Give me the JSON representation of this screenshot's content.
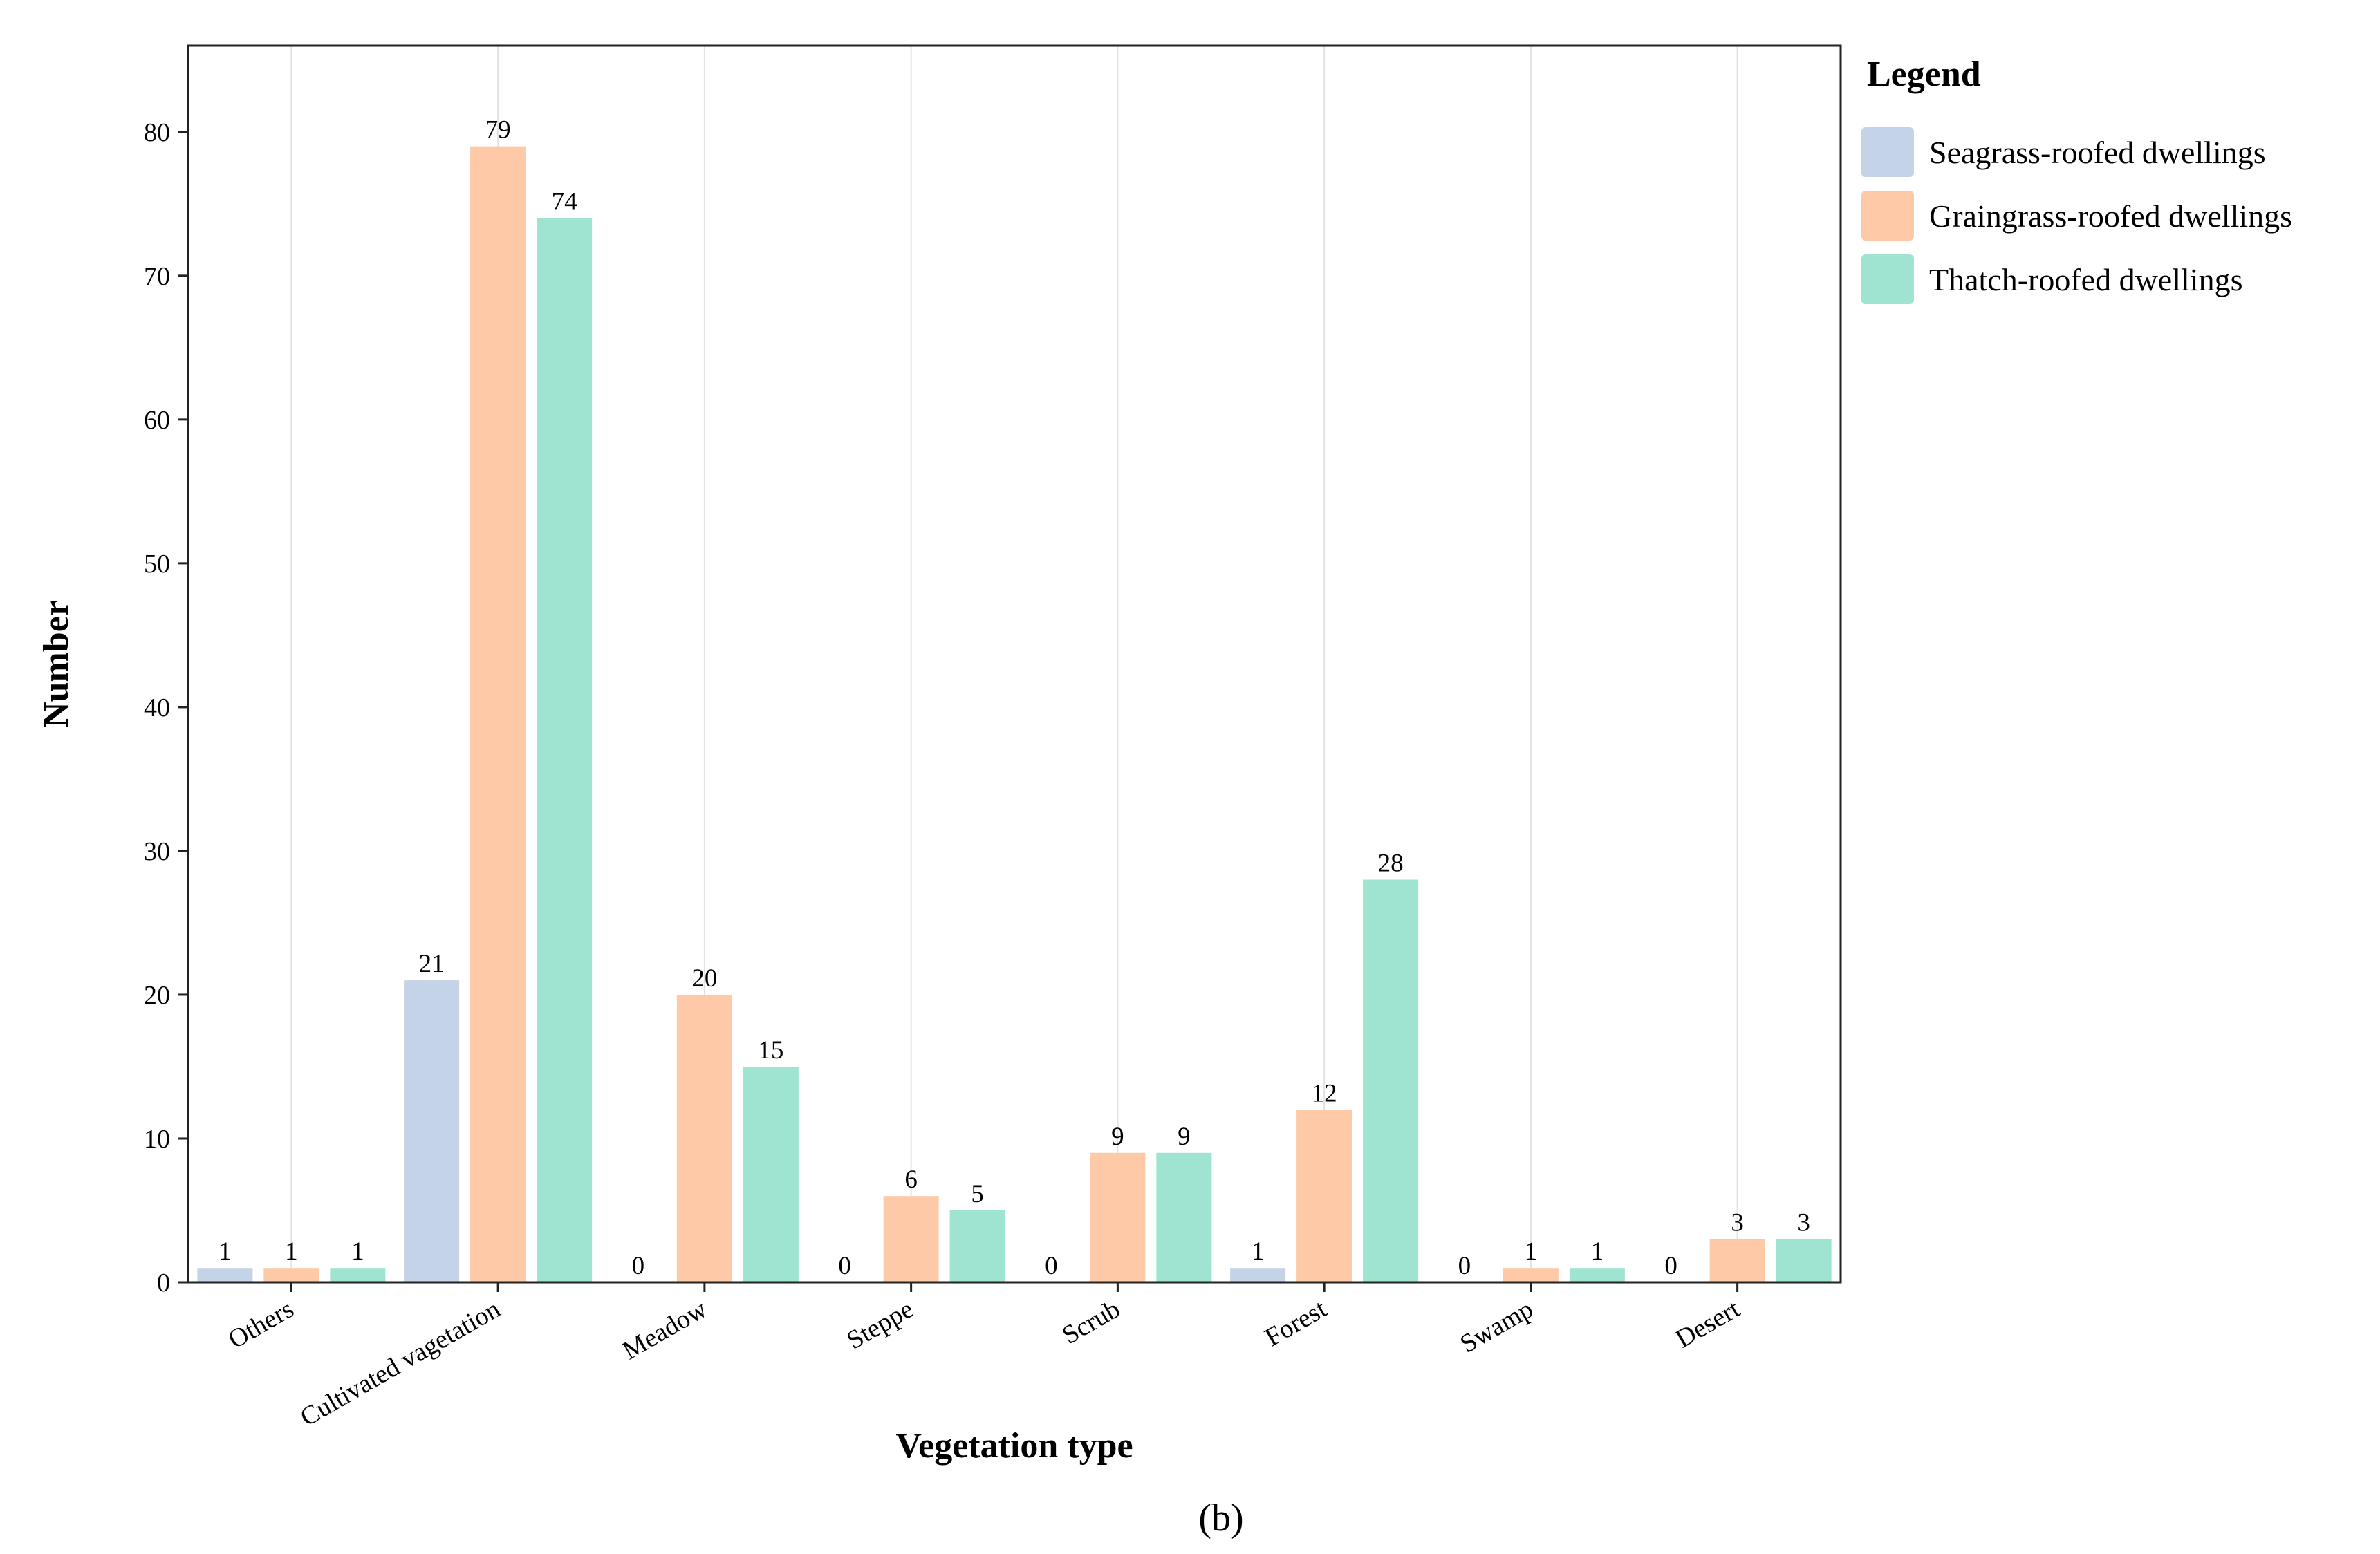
{
  "chart_data": {
    "type": "bar",
    "title": "",
    "xlabel": "Vegetation type",
    "ylabel": "Number",
    "ylim": [
      0,
      86
    ],
    "yticks": [
      0,
      10,
      20,
      30,
      40,
      50,
      60,
      70,
      80
    ],
    "grid": "vertical",
    "categories": [
      "Others",
      "Cultivated vagetation",
      "Meadow",
      "Steppe",
      "Scrub",
      "Forest",
      "Swamp",
      "Desert"
    ],
    "series": [
      {
        "name": "Seagrass-roofed dwellings",
        "color": "#c5d3e8",
        "values": [
          1,
          21,
          0,
          0,
          0,
          1,
          0,
          0
        ]
      },
      {
        "name": "Graingrass-roofed dwellings",
        "color": "#fdc9a6",
        "values": [
          1,
          79,
          20,
          6,
          9,
          12,
          1,
          3
        ]
      },
      {
        "name": "Thatch-roofed dwellings",
        "color": "#9ee4d0",
        "values": [
          1,
          74,
          15,
          5,
          9,
          28,
          1,
          3
        ]
      }
    ],
    "legend": {
      "title": "Legend",
      "placement": "right"
    },
    "caption": "(b)"
  }
}
